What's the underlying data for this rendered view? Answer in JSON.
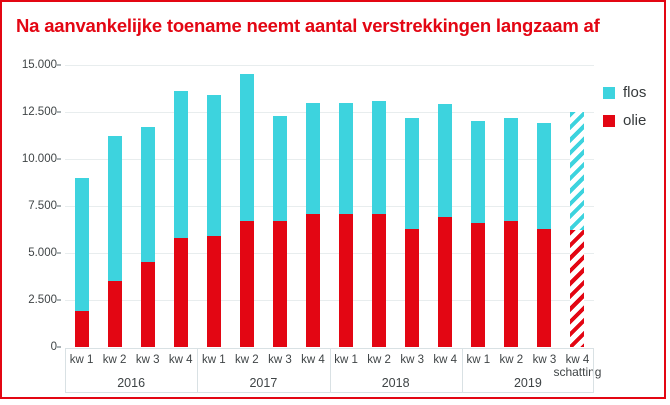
{
  "title": "Na aanvankelijke toename neemt aantal verstrekkingen langzaam af",
  "colors": {
    "accent_red": "#e30613",
    "flos_cyan": "#3dd3de",
    "gridline": "#e8edee",
    "axis_text": "#3f4446"
  },
  "legend": [
    {
      "name": "flos",
      "color": "#3dd3de",
      "swatch_icon": "square-swatch-icon"
    },
    {
      "name": "olie",
      "color": "#e30613",
      "swatch_icon": "square-swatch-icon"
    }
  ],
  "chart_data": {
    "type": "bar",
    "stacked": true,
    "title": "Na aanvankelijke toename neemt aantal verstrekkingen langzaam af",
    "categories": [
      "kw 1",
      "kw 2",
      "kw 3",
      "kw 4",
      "kw 1",
      "kw 2",
      "kw 3",
      "kw 4",
      "kw 1",
      "kw 2",
      "kw 3",
      "kw 4",
      "kw 1",
      "kw 2",
      "kw 3",
      "kw 4"
    ],
    "years": [
      "2016",
      "2017",
      "2018",
      "2019"
    ],
    "series": [
      {
        "name": "olie",
        "color": "#e30613",
        "values": [
          1900,
          3500,
          4500,
          5800,
          5900,
          6700,
          6700,
          7100,
          7100,
          7100,
          6300,
          6900,
          6600,
          6700,
          6300,
          6200
        ]
      },
      {
        "name": "flos",
        "color": "#3dd3de",
        "values": [
          7100,
          7700,
          7200,
          7800,
          7500,
          7800,
          5600,
          5900,
          5900,
          6000,
          5900,
          6000,
          5400,
          5500,
          5600,
          6300
        ]
      }
    ],
    "totals": [
      9000,
      11200,
      11700,
      13600,
      13400,
      14500,
      12300,
      13000,
      13000,
      13100,
      12200,
      12900,
      12000,
      12200,
      11900,
      12500
    ],
    "estimate_index": 15,
    "estimate_label": "schatting",
    "ylim": [
      0,
      15000
    ],
    "yticks": [
      "15.000",
      "12.500",
      "10.000",
      "7.500",
      "5.000",
      "2.500",
      "0"
    ],
    "xlabel": "",
    "ylabel": "",
    "grid": true,
    "legend_position": "top-right"
  }
}
